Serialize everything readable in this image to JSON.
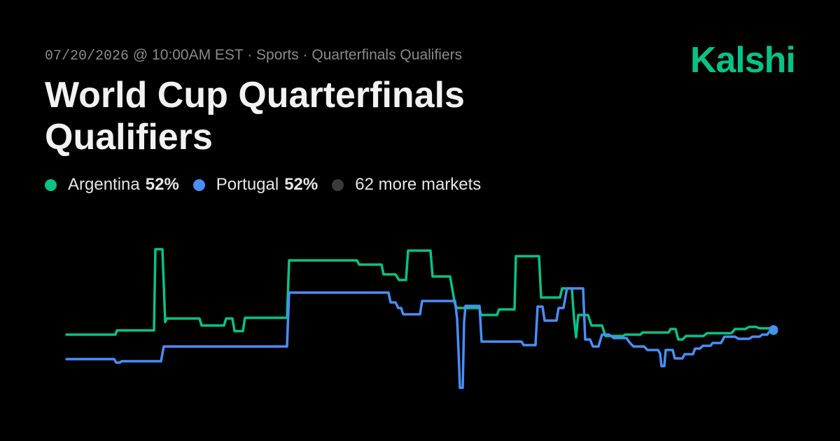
{
  "header": {
    "date": "07/20/2026",
    "meta_rest": " @ 10:00AM EST · Sports · Quarterfinals Qualifiers",
    "title": "World Cup Quarterfinals Qualifiers",
    "logo": "Kalshi"
  },
  "legend": {
    "items": [
      {
        "label": "Argentina",
        "value": "52%",
        "color": "#09c285"
      },
      {
        "label": "Portugal",
        "value": "52%",
        "color": "#4a8ef7"
      },
      {
        "label": "62 more markets",
        "value": "",
        "color": "#3a3a3a"
      }
    ]
  },
  "chart_data": {
    "type": "line",
    "title": "",
    "xlabel": "",
    "ylabel": "",
    "grid": false,
    "axes_visible": false,
    "series": [
      {
        "name": "Argentina",
        "color": "#09c285",
        "points": [
          [
            0,
            478
          ],
          [
            70,
            478
          ],
          [
            72,
            472
          ],
          [
            125,
            472
          ],
          [
            127,
            356
          ],
          [
            137,
            356
          ],
          [
            141,
            460
          ],
          [
            143,
            455
          ],
          [
            190,
            455
          ],
          [
            193,
            465
          ],
          [
            225,
            465
          ],
          [
            228,
            455
          ],
          [
            237,
            455
          ],
          [
            240,
            473
          ],
          [
            252,
            473
          ],
          [
            255,
            454
          ],
          [
            315,
            454
          ],
          [
            318,
            372
          ],
          [
            415,
            372
          ],
          [
            418,
            378
          ],
          [
            450,
            378
          ],
          [
            453,
            392
          ],
          [
            470,
            392
          ],
          [
            475,
            400
          ],
          [
            485,
            400
          ],
          [
            488,
            358
          ],
          [
            520,
            358
          ],
          [
            523,
            395
          ],
          [
            548,
            395
          ],
          [
            555,
            435
          ],
          [
            558,
            440
          ],
          [
            590,
            440
          ],
          [
            592,
            450
          ],
          [
            615,
            450
          ],
          [
            618,
            442
          ],
          [
            640,
            442
          ],
          [
            642,
            366
          ],
          [
            675,
            366
          ],
          [
            678,
            425
          ],
          [
            705,
            425
          ],
          [
            708,
            412
          ],
          [
            722,
            412
          ],
          [
            725,
            455
          ],
          [
            728,
            482
          ],
          [
            731,
            450
          ],
          [
            745,
            450
          ],
          [
            750,
            465
          ],
          [
            765,
            465
          ],
          [
            770,
            480
          ],
          [
            795,
            480
          ],
          [
            798,
            478
          ],
          [
            820,
            478
          ],
          [
            823,
            475
          ],
          [
            860,
            475
          ],
          [
            863,
            470
          ],
          [
            870,
            470
          ],
          [
            874,
            485
          ],
          [
            880,
            485
          ],
          [
            885,
            480
          ],
          [
            910,
            480
          ],
          [
            915,
            476
          ],
          [
            950,
            476
          ],
          [
            955,
            470
          ],
          [
            970,
            470
          ],
          [
            975,
            467
          ],
          [
            985,
            467
          ],
          [
            990,
            469
          ],
          [
            1010,
            469
          ]
        ]
      },
      {
        "name": "Portugal",
        "color": "#4a8ef7",
        "points": [
          [
            0,
            513
          ],
          [
            68,
            513
          ],
          [
            71,
            518
          ],
          [
            76,
            518
          ],
          [
            79,
            516
          ],
          [
            135,
            516
          ],
          [
            139,
            495
          ],
          [
            315,
            495
          ],
          [
            318,
            418
          ],
          [
            460,
            418
          ],
          [
            463,
            432
          ],
          [
            470,
            432
          ],
          [
            474,
            440
          ],
          [
            478,
            440
          ],
          [
            481,
            449
          ],
          [
            505,
            449
          ],
          [
            508,
            430
          ],
          [
            555,
            430
          ],
          [
            558,
            455
          ],
          [
            560,
            500
          ],
          [
            562,
            554
          ],
          [
            566,
            554
          ],
          [
            568,
            460
          ],
          [
            570,
            437
          ],
          [
            590,
            437
          ],
          [
            593,
            488
          ],
          [
            650,
            488
          ],
          [
            653,
            493
          ],
          [
            670,
            493
          ],
          [
            673,
            438
          ],
          [
            680,
            438
          ],
          [
            683,
            458
          ],
          [
            700,
            458
          ],
          [
            703,
            440
          ],
          [
            710,
            440
          ],
          [
            715,
            412
          ],
          [
            738,
            412
          ],
          [
            741,
            485
          ],
          [
            748,
            485
          ],
          [
            752,
            495
          ],
          [
            760,
            495
          ],
          [
            765,
            478
          ],
          [
            775,
            478
          ],
          [
            782,
            483
          ],
          [
            800,
            483
          ],
          [
            805,
            490
          ],
          [
            810,
            495
          ],
          [
            825,
            495
          ],
          [
            830,
            500
          ],
          [
            845,
            500
          ],
          [
            848,
            505
          ],
          [
            850,
            523
          ],
          [
            854,
            523
          ],
          [
            856,
            500
          ],
          [
            866,
            500
          ],
          [
            869,
            512
          ],
          [
            880,
            512
          ],
          [
            883,
            506
          ],
          [
            895,
            506
          ],
          [
            898,
            498
          ],
          [
            905,
            498
          ],
          [
            909,
            494
          ],
          [
            920,
            494
          ],
          [
            923,
            490
          ],
          [
            935,
            490
          ],
          [
            940,
            481
          ],
          [
            955,
            481
          ],
          [
            960,
            484
          ],
          [
            975,
            484
          ],
          [
            980,
            481
          ],
          [
            990,
            481
          ],
          [
            994,
            478
          ],
          [
            1001,
            478
          ],
          [
            1004,
            474
          ],
          [
            1010,
            474
          ]
        ]
      }
    ]
  }
}
